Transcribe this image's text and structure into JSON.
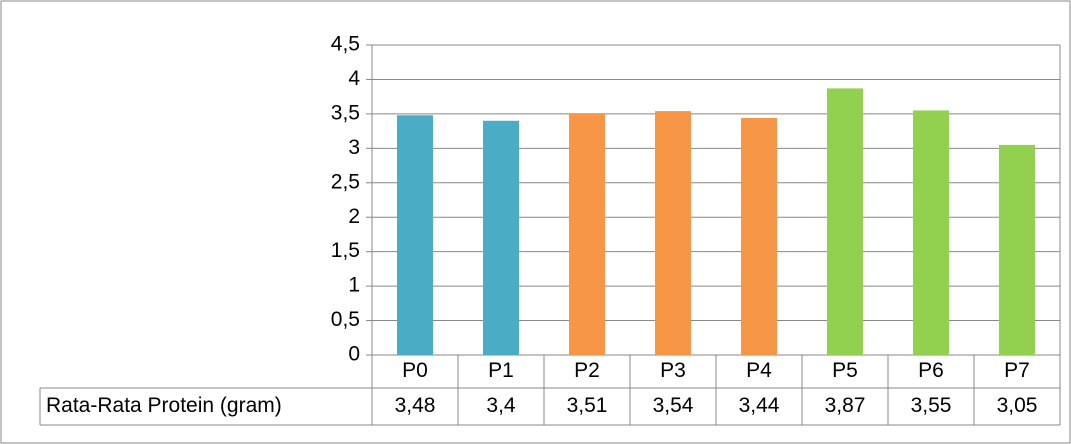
{
  "chart_data": {
    "type": "bar",
    "categories": [
      "P0",
      "P1",
      "P2",
      "P3",
      "P4",
      "P5",
      "P6",
      "P7"
    ],
    "series": [
      {
        "name": "Rata-Rata Protein (gram)",
        "colors": [
          "#4bacc6",
          "#4bacc6",
          "#f79646",
          "#f79646",
          "#f79646",
          "#92d050",
          "#92d050",
          "#92d050"
        ],
        "values": [
          3.48,
          3.4,
          3.51,
          3.54,
          3.44,
          3.87,
          3.55,
          3.05
        ],
        "value_labels": [
          "3,48",
          "3,4",
          "3,51",
          "3,54",
          "3,44",
          "3,87",
          "3,55",
          "3,05"
        ]
      }
    ],
    "ylim": [
      0,
      4.5
    ],
    "yticks": [
      0,
      {
        "value": 0.5,
        "label": "0,5"
      },
      1,
      {
        "value": 1.5,
        "label": "1,5"
      },
      2,
      {
        "value": 2.5,
        "label": "2,5"
      },
      3,
      {
        "value": 3.5,
        "label": "3,5"
      },
      4,
      {
        "value": 4.5,
        "label": "4,5"
      }
    ],
    "grid": true
  }
}
